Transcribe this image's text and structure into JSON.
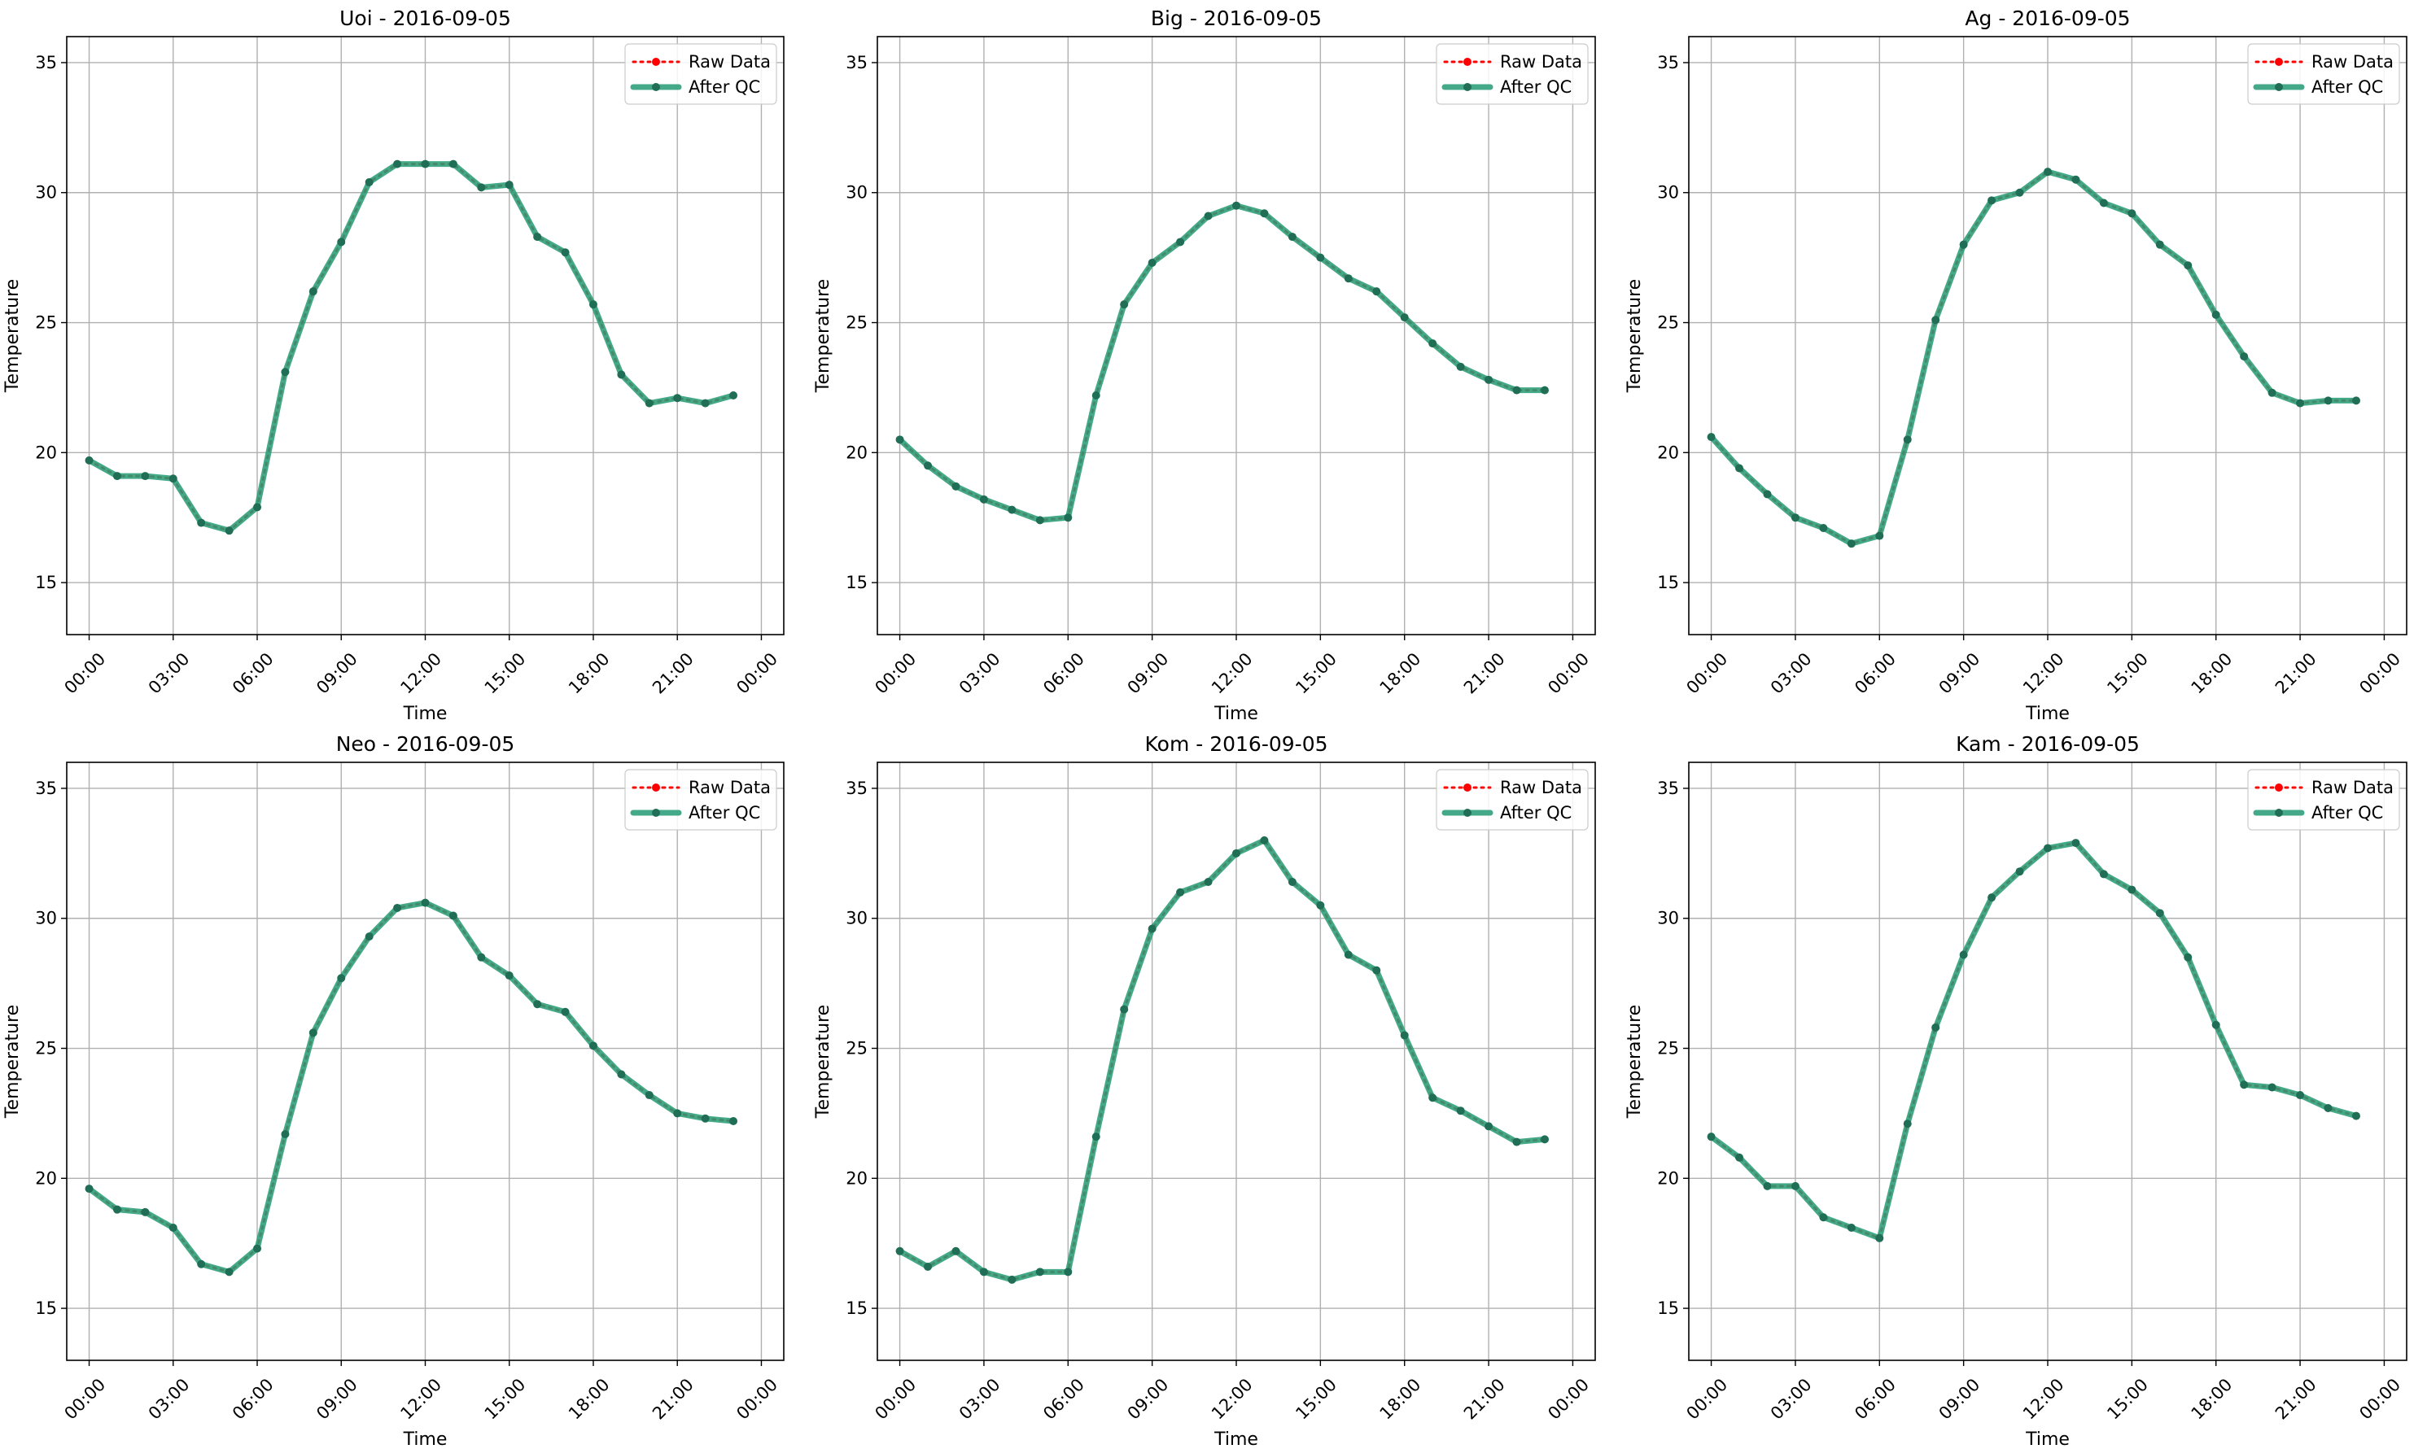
{
  "colors": {
    "raw": "#ff0000",
    "qc": "#2a9d78",
    "qc_marker": "#1f6e55",
    "grid": "#b0b0b0",
    "axes": "#000000"
  },
  "legend": {
    "raw_label": "Raw Data",
    "qc_label": "After QC",
    "placement": "upper right"
  },
  "chart_data": [
    {
      "type": "line",
      "title": "Uoi - 2016-09-05",
      "xlabel": "Time",
      "ylabel": "Temperature",
      "x": [
        "00:00",
        "01:00",
        "02:00",
        "03:00",
        "04:00",
        "05:00",
        "06:00",
        "07:00",
        "08:00",
        "09:00",
        "10:00",
        "11:00",
        "12:00",
        "13:00",
        "14:00",
        "15:00",
        "16:00",
        "17:00",
        "18:00",
        "19:00",
        "20:00",
        "21:00",
        "22:00",
        "23:00"
      ],
      "xticks": [
        "00:00",
        "03:00",
        "06:00",
        "09:00",
        "12:00",
        "15:00",
        "18:00",
        "21:00",
        "00:00"
      ],
      "yticks": [
        15,
        20,
        25,
        30,
        35
      ],
      "ylim": [
        13,
        36
      ],
      "grid": true,
      "series": [
        {
          "name": "Raw Data",
          "values": [
            19.7,
            19.1,
            19.1,
            19.0,
            17.3,
            17.0,
            17.9,
            23.1,
            26.2,
            28.1,
            30.4,
            31.1,
            31.1,
            31.1,
            30.2,
            30.3,
            28.3,
            27.7,
            25.7,
            23.0,
            21.9,
            22.1,
            21.9,
            22.2
          ]
        },
        {
          "name": "After QC",
          "values": [
            19.7,
            19.1,
            19.1,
            19.0,
            17.3,
            17.0,
            17.9,
            23.1,
            26.2,
            28.1,
            30.4,
            31.1,
            31.1,
            31.1,
            30.2,
            30.3,
            28.3,
            27.7,
            25.7,
            23.0,
            21.9,
            22.1,
            21.9,
            22.2
          ]
        }
      ]
    },
    {
      "type": "line",
      "title": "Big - 2016-09-05",
      "xlabel": "Time",
      "ylabel": "Temperature",
      "x": [
        "00:00",
        "01:00",
        "02:00",
        "03:00",
        "04:00",
        "05:00",
        "06:00",
        "07:00",
        "08:00",
        "09:00",
        "10:00",
        "11:00",
        "12:00",
        "13:00",
        "14:00",
        "15:00",
        "16:00",
        "17:00",
        "18:00",
        "19:00",
        "20:00",
        "21:00",
        "22:00",
        "23:00"
      ],
      "xticks": [
        "00:00",
        "03:00",
        "06:00",
        "09:00",
        "12:00",
        "15:00",
        "18:00",
        "21:00",
        "00:00"
      ],
      "yticks": [
        15,
        20,
        25,
        30,
        35
      ],
      "ylim": [
        13,
        36
      ],
      "grid": true,
      "series": [
        {
          "name": "Raw Data",
          "values": [
            20.5,
            19.5,
            18.7,
            18.2,
            17.8,
            17.4,
            17.5,
            22.2,
            25.7,
            27.3,
            28.1,
            29.1,
            29.5,
            29.2,
            28.3,
            27.5,
            26.7,
            26.2,
            25.2,
            24.2,
            23.3,
            22.8,
            22.4,
            22.4
          ]
        },
        {
          "name": "After QC",
          "values": [
            20.5,
            19.5,
            18.7,
            18.2,
            17.8,
            17.4,
            17.5,
            22.2,
            25.7,
            27.3,
            28.1,
            29.1,
            29.5,
            29.2,
            28.3,
            27.5,
            26.7,
            26.2,
            25.2,
            24.2,
            23.3,
            22.8,
            22.4,
            22.4
          ]
        }
      ]
    },
    {
      "type": "line",
      "title": "Ag - 2016-09-05",
      "xlabel": "Time",
      "ylabel": "Temperature",
      "x": [
        "00:00",
        "01:00",
        "02:00",
        "03:00",
        "04:00",
        "05:00",
        "06:00",
        "07:00",
        "08:00",
        "09:00",
        "10:00",
        "11:00",
        "12:00",
        "13:00",
        "14:00",
        "15:00",
        "16:00",
        "17:00",
        "18:00",
        "19:00",
        "20:00",
        "21:00",
        "22:00",
        "23:00"
      ],
      "xticks": [
        "00:00",
        "03:00",
        "06:00",
        "09:00",
        "12:00",
        "15:00",
        "18:00",
        "21:00",
        "00:00"
      ],
      "yticks": [
        15,
        20,
        25,
        30,
        35
      ],
      "ylim": [
        13,
        36
      ],
      "grid": true,
      "series": [
        {
          "name": "Raw Data",
          "values": [
            20.6,
            19.4,
            18.4,
            17.5,
            17.1,
            16.5,
            16.8,
            20.5,
            25.1,
            28.0,
            29.7,
            30.0,
            30.8,
            30.5,
            29.6,
            29.2,
            28.0,
            27.2,
            25.3,
            23.7,
            22.3,
            21.9,
            22.0,
            22.0
          ]
        },
        {
          "name": "After QC",
          "values": [
            20.6,
            19.4,
            18.4,
            17.5,
            17.1,
            16.5,
            16.8,
            20.5,
            25.1,
            28.0,
            29.7,
            30.0,
            30.8,
            30.5,
            29.6,
            29.2,
            28.0,
            27.2,
            25.3,
            23.7,
            22.3,
            21.9,
            22.0,
            22.0
          ]
        }
      ]
    },
    {
      "type": "line",
      "title": "Neo - 2016-09-05",
      "xlabel": "Time",
      "ylabel": "Temperature",
      "x": [
        "00:00",
        "01:00",
        "02:00",
        "03:00",
        "04:00",
        "05:00",
        "06:00",
        "07:00",
        "08:00",
        "09:00",
        "10:00",
        "11:00",
        "12:00",
        "13:00",
        "14:00",
        "15:00",
        "16:00",
        "17:00",
        "18:00",
        "19:00",
        "20:00",
        "21:00",
        "22:00",
        "23:00"
      ],
      "xticks": [
        "00:00",
        "03:00",
        "06:00",
        "09:00",
        "12:00",
        "15:00",
        "18:00",
        "21:00",
        "00:00"
      ],
      "yticks": [
        15,
        20,
        25,
        30,
        35
      ],
      "ylim": [
        13,
        36
      ],
      "grid": true,
      "series": [
        {
          "name": "Raw Data",
          "values": [
            19.6,
            18.8,
            18.7,
            18.1,
            16.7,
            16.4,
            17.3,
            21.7,
            25.6,
            27.7,
            29.3,
            30.4,
            30.6,
            30.1,
            28.5,
            27.8,
            26.7,
            26.4,
            25.1,
            24.0,
            23.2,
            22.5,
            22.3,
            22.2
          ]
        },
        {
          "name": "After QC",
          "values": [
            19.6,
            18.8,
            18.7,
            18.1,
            16.7,
            16.4,
            17.3,
            21.7,
            25.6,
            27.7,
            29.3,
            30.4,
            30.6,
            30.1,
            28.5,
            27.8,
            26.7,
            26.4,
            25.1,
            24.0,
            23.2,
            22.5,
            22.3,
            22.2
          ]
        }
      ]
    },
    {
      "type": "line",
      "title": "Kom - 2016-09-05",
      "xlabel": "Time",
      "ylabel": "Temperature",
      "x": [
        "00:00",
        "01:00",
        "02:00",
        "03:00",
        "04:00",
        "05:00",
        "06:00",
        "07:00",
        "08:00",
        "09:00",
        "10:00",
        "11:00",
        "12:00",
        "13:00",
        "14:00",
        "15:00",
        "16:00",
        "17:00",
        "18:00",
        "19:00",
        "20:00",
        "21:00",
        "22:00",
        "23:00"
      ],
      "xticks": [
        "00:00",
        "03:00",
        "06:00",
        "09:00",
        "12:00",
        "15:00",
        "18:00",
        "21:00",
        "00:00"
      ],
      "yticks": [
        15,
        20,
        25,
        30,
        35
      ],
      "ylim": [
        13,
        36
      ],
      "grid": true,
      "series": [
        {
          "name": "Raw Data",
          "values": [
            17.2,
            16.6,
            17.2,
            16.4,
            16.1,
            16.4,
            16.4,
            21.6,
            26.5,
            29.6,
            31.0,
            31.4,
            32.5,
            33.0,
            31.4,
            30.5,
            28.6,
            28.0,
            25.5,
            23.1,
            22.6,
            22.0,
            21.4,
            21.5
          ]
        },
        {
          "name": "After QC",
          "values": [
            17.2,
            16.6,
            17.2,
            16.4,
            16.1,
            16.4,
            16.4,
            21.6,
            26.5,
            29.6,
            31.0,
            31.4,
            32.5,
            33.0,
            31.4,
            30.5,
            28.6,
            28.0,
            25.5,
            23.1,
            22.6,
            22.0,
            21.4,
            21.5
          ]
        }
      ]
    },
    {
      "type": "line",
      "title": "Kam - 2016-09-05",
      "xlabel": "Time",
      "ylabel": "Temperature",
      "x": [
        "00:00",
        "01:00",
        "02:00",
        "03:00",
        "04:00",
        "05:00",
        "06:00",
        "07:00",
        "08:00",
        "09:00",
        "10:00",
        "11:00",
        "12:00",
        "13:00",
        "14:00",
        "15:00",
        "16:00",
        "17:00",
        "18:00",
        "19:00",
        "20:00",
        "21:00",
        "22:00",
        "23:00"
      ],
      "xticks": [
        "00:00",
        "03:00",
        "06:00",
        "09:00",
        "12:00",
        "15:00",
        "18:00",
        "21:00",
        "00:00"
      ],
      "yticks": [
        15,
        20,
        25,
        30,
        35
      ],
      "ylim": [
        13,
        36
      ],
      "grid": true,
      "series": [
        {
          "name": "Raw Data",
          "values": [
            21.6,
            20.8,
            19.7,
            19.7,
            18.5,
            18.1,
            17.7,
            22.1,
            25.8,
            28.6,
            30.8,
            31.8,
            32.7,
            32.9,
            31.7,
            31.1,
            30.2,
            28.5,
            25.9,
            23.6,
            23.5,
            23.2,
            22.7,
            22.4
          ]
        },
        {
          "name": "After QC",
          "values": [
            21.6,
            20.8,
            19.7,
            19.7,
            18.5,
            18.1,
            17.7,
            22.1,
            25.8,
            28.6,
            30.8,
            31.8,
            32.7,
            32.9,
            31.7,
            31.1,
            30.2,
            28.5,
            25.9,
            23.6,
            23.5,
            23.2,
            22.7,
            22.4
          ]
        }
      ]
    }
  ]
}
